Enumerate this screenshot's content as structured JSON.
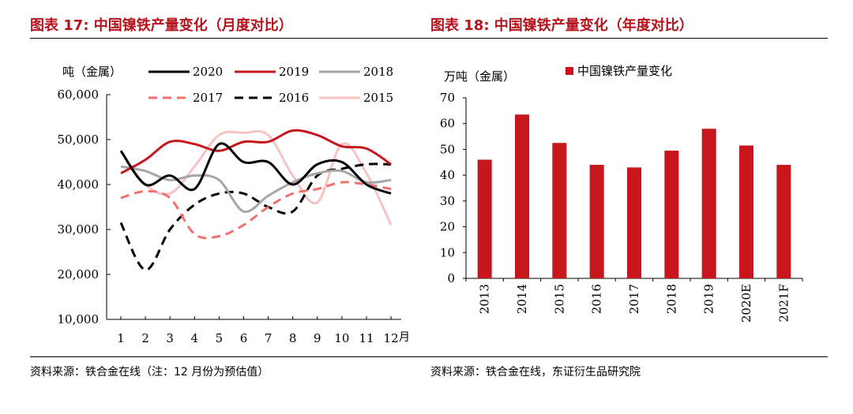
{
  "left": {
    "title": "图表 17: 中国镍铁产量变化（月度对比）",
    "source": "资料来源：铁合金在线（注：12 月份为预估值）"
  },
  "right": {
    "title": "图表 18: 中国镍铁产量变化（年度对比）",
    "source": "资料来源：铁合金在线，东证衍生品研究院"
  },
  "chart_data": [
    {
      "type": "line",
      "ylabel": "吨（金属）",
      "x_unit": "月",
      "x": [
        1,
        2,
        3,
        4,
        5,
        6,
        7,
        8,
        9,
        10,
        11,
        12
      ],
      "x_tick_labels": [
        "1",
        "2",
        "3",
        "4",
        "5",
        "6",
        "7",
        "8",
        "9",
        "10",
        "11",
        "12"
      ],
      "ylim": [
        10000,
        60000
      ],
      "y_ticks": [
        10000,
        20000,
        30000,
        40000,
        50000,
        60000
      ],
      "y_tick_labels": [
        "10,000",
        "20,000",
        "30,000",
        "40,000",
        "50,000",
        "60,000"
      ],
      "grid": false,
      "legend_position": "top",
      "series": [
        {
          "name": "2020",
          "color": "#000000",
          "dash": "solid",
          "values": [
            47500,
            40000,
            42000,
            39000,
            49000,
            45000,
            45000,
            40000,
            44500,
            45000,
            40000,
            38000
          ]
        },
        {
          "name": "2019",
          "color": "#c8161d",
          "dash": "solid",
          "values": [
            42500,
            45500,
            49500,
            49000,
            47500,
            49500,
            49500,
            52000,
            51000,
            48500,
            48000,
            44500
          ]
        },
        {
          "name": "2018",
          "color": "#a6a6a6",
          "dash": "solid",
          "values": [
            44000,
            43000,
            41000,
            42000,
            41000,
            34000,
            37500,
            40500,
            42500,
            43000,
            40500,
            41000
          ]
        },
        {
          "name": "2017",
          "color": "#f07070",
          "dash": "dash",
          "values": [
            37000,
            38500,
            37000,
            29000,
            28500,
            31000,
            35000,
            38000,
            39000,
            40500,
            40000,
            39000
          ]
        },
        {
          "name": "2016",
          "color": "#000000",
          "dash": "dash",
          "values": [
            31500,
            21000,
            30000,
            35500,
            38000,
            38000,
            35000,
            34000,
            42000,
            43500,
            44500,
            44500
          ]
        },
        {
          "name": "2015",
          "color": "#f7c2c2",
          "dash": "solid",
          "values": [
            47500,
            40000,
            38000,
            44000,
            51000,
            51500,
            51000,
            42000,
            36000,
            49000,
            42500,
            31000
          ]
        }
      ]
    },
    {
      "type": "bar",
      "ylabel": "万吨（金属）",
      "legend": "中国镍铁产量变化",
      "legend_position": "top",
      "color": "#c8161d",
      "categories": [
        "2013",
        "2014",
        "2015",
        "2016",
        "2017",
        "2018",
        "2019",
        "2020E",
        "2021F"
      ],
      "values": [
        46,
        63.5,
        52.5,
        44,
        43,
        49.5,
        58,
        51.5,
        44
      ],
      "ylim": [
        0,
        70
      ],
      "y_ticks": [
        0,
        10,
        20,
        30,
        40,
        50,
        60,
        70
      ],
      "grid": false
    }
  ]
}
